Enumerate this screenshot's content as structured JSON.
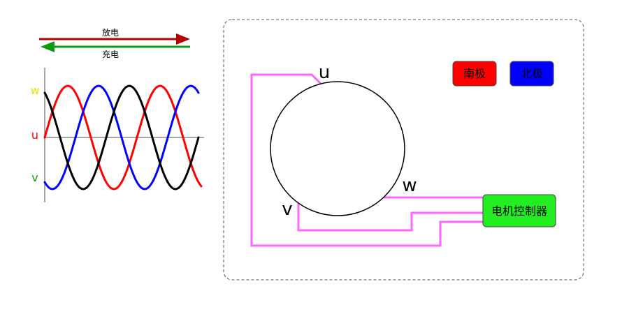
{
  "arrows": {
    "discharge_label": "放电",
    "charge_label": "充电",
    "discharge_color": "#b30000",
    "charge_color": "#119911"
  },
  "waveform": {
    "phase_labels": {
      "w": "w",
      "u": "u",
      "v": "v"
    },
    "phase_colors": {
      "w": "#e6e600",
      "u": "#ff0000",
      "v": "#119911"
    },
    "curve_colors": {
      "u": "#ff0000",
      "v": "#0000ff",
      "w": "#000000"
    }
  },
  "motor": {
    "terminal_labels": {
      "u": "u",
      "v": "v",
      "w": "w"
    },
    "wire_color": "#ff66ff"
  },
  "legend": {
    "south_label": "南极",
    "north_label": "北极",
    "south_color": "#ff0000",
    "north_color": "#0000ff"
  },
  "controller": {
    "label": "电机控制器",
    "color": "#22ee22"
  }
}
